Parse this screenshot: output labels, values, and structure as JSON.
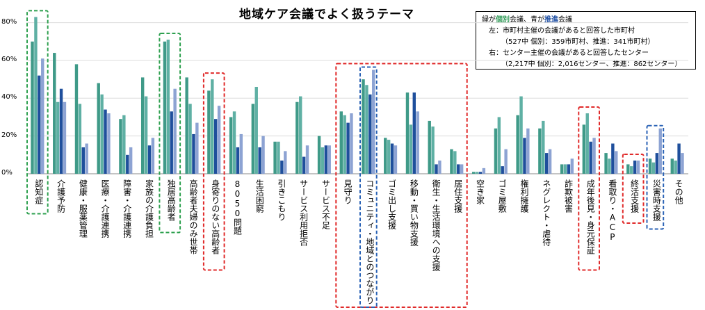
{
  "chart_data": {
    "type": "bar",
    "title": "地域ケア会議でよく扱うテーマ",
    "ylim": [
      0,
      85
    ],
    "yticks": [
      0,
      20,
      40,
      60,
      80
    ],
    "ytick_labels": [
      "0%",
      "20%",
      "40%",
      "60%",
      "80%"
    ],
    "categories": [
      "認知症",
      "介護予防",
      "健康・服薬管理",
      "医療・介護連携",
      "障害・介護連携",
      "家族の介護負担",
      "独居高齢者",
      "高齢者夫婦のみ世帯",
      "身寄りのない高齢者",
      "8050問題",
      "生活困窮",
      "引きこもり",
      "サービス利用拒否",
      "サービス不足",
      "見守り",
      "コミュニティ・地域とのつながり",
      "ゴミ出し支援",
      "移動・買い物支援",
      "衛生・生活環境への支援",
      "居住支援",
      "空き家",
      "ゴミ屋敷",
      "権利擁護",
      "ネグレクト・虐待",
      "詐欺被害",
      "成年後見・身元保証",
      "看取り・ACP",
      "終活支援",
      "災害時支援",
      "その他"
    ],
    "series": [
      {
        "name": "市町村主催・個別",
        "color": "#3f9a88",
        "values": [
          70,
          64,
          58,
          48,
          29,
          51,
          70,
          51,
          44,
          30,
          37,
          17,
          38,
          20,
          33,
          50,
          19,
          43,
          28,
          13,
          1,
          24,
          31,
          24,
          5,
          26,
          11,
          5,
          8,
          8
        ]
      },
      {
        "name": "市町村主催・推進",
        "color": "#5fb0a4",
        "values": [
          83,
          38,
          37,
          42,
          31,
          41,
          71,
          37,
          50,
          33,
          46,
          17,
          41,
          14,
          31,
          47,
          18,
          26,
          25,
          12,
          1,
          30,
          41,
          28,
          5,
          32,
          8,
          4,
          6,
          7
        ]
      },
      {
        "name": "センター主催・個別",
        "color": "#1f4f9c",
        "values": [
          52,
          45,
          14,
          34,
          10,
          15,
          33,
          21,
          29,
          14,
          14,
          7,
          9,
          15,
          27,
          42,
          16,
          43,
          5,
          5,
          1,
          4,
          19,
          11,
          5,
          17,
          16,
          7,
          11,
          16
        ]
      },
      {
        "name": "センター主催・推進",
        "color": "#8da3d3",
        "values": [
          61,
          38,
          16,
          32,
          14,
          19,
          45,
          27,
          36,
          21,
          20,
          12,
          15,
          15,
          32,
          55,
          15,
          33,
          7,
          5,
          3,
          13,
          24,
          13,
          8,
          19,
          12,
          7,
          24,
          11
        ]
      }
    ],
    "legend": {
      "line1_pre": "緑が",
      "line1_kobetsu": "個別",
      "line1_mid": "会議、青が",
      "line1_suishin": "推進",
      "line1_post": "会議",
      "line2": "左：市町村主催の会議があると回答した市町村",
      "line3": "（527中 個別：359市町村、推進：341市町村）",
      "line4": "右：センター主催の会議があると回答したセンター",
      "line5": "（2,217中 個別：2,016センター、推進：862センター）"
    },
    "highlight_groups": [
      {
        "color": "green",
        "members": [
          "認知症"
        ]
      },
      {
        "color": "green",
        "members": [
          "独居高齢者"
        ]
      },
      {
        "color": "red",
        "members": [
          "身寄りのない高齢者"
        ]
      },
      {
        "color": "red",
        "members": [
          "見守り",
          "コミュニティ・地域とのつながり",
          "ゴミ出し支援",
          "移動・買い物支援",
          "衛生・生活環境への支援",
          "居住支援"
        ]
      },
      {
        "color": "blue",
        "members": [
          "コミュニティ・地域とのつながり"
        ]
      },
      {
        "color": "red",
        "members": [
          "成年後見・身元保証"
        ]
      },
      {
        "color": "red",
        "members": [
          "終活支援"
        ]
      },
      {
        "color": "blue",
        "members": [
          "災害時支援"
        ]
      }
    ]
  }
}
